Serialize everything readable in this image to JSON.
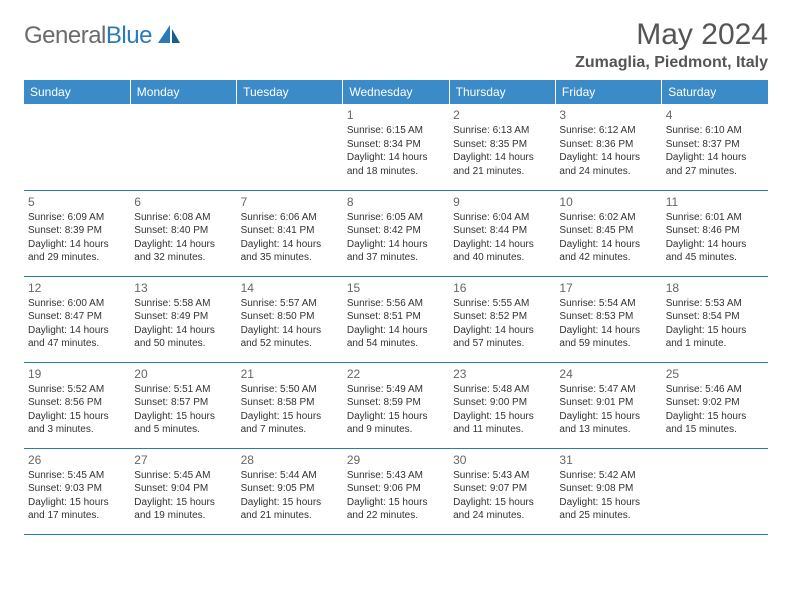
{
  "logo": {
    "part1": "General",
    "part2": "Blue"
  },
  "title": "May 2024",
  "location": "Zumaglia, Piedmont, Italy",
  "colors": {
    "header_bg": "#3b8bc9",
    "header_text": "#ffffff",
    "border": "#2a7ab9",
    "logo_gray": "#6b6b6b",
    "logo_blue": "#2a7ab9",
    "text": "#333333",
    "muted": "#666666"
  },
  "day_headers": [
    "Sunday",
    "Monday",
    "Tuesday",
    "Wednesday",
    "Thursday",
    "Friday",
    "Saturday"
  ],
  "weeks": [
    [
      null,
      null,
      null,
      {
        "n": "1",
        "sunrise": "6:15 AM",
        "sunset": "8:34 PM",
        "daylight": "14 hours and 18 minutes."
      },
      {
        "n": "2",
        "sunrise": "6:13 AM",
        "sunset": "8:35 PM",
        "daylight": "14 hours and 21 minutes."
      },
      {
        "n": "3",
        "sunrise": "6:12 AM",
        "sunset": "8:36 PM",
        "daylight": "14 hours and 24 minutes."
      },
      {
        "n": "4",
        "sunrise": "6:10 AM",
        "sunset": "8:37 PM",
        "daylight": "14 hours and 27 minutes."
      }
    ],
    [
      {
        "n": "5",
        "sunrise": "6:09 AM",
        "sunset": "8:39 PM",
        "daylight": "14 hours and 29 minutes."
      },
      {
        "n": "6",
        "sunrise": "6:08 AM",
        "sunset": "8:40 PM",
        "daylight": "14 hours and 32 minutes."
      },
      {
        "n": "7",
        "sunrise": "6:06 AM",
        "sunset": "8:41 PM",
        "daylight": "14 hours and 35 minutes."
      },
      {
        "n": "8",
        "sunrise": "6:05 AM",
        "sunset": "8:42 PM",
        "daylight": "14 hours and 37 minutes."
      },
      {
        "n": "9",
        "sunrise": "6:04 AM",
        "sunset": "8:44 PM",
        "daylight": "14 hours and 40 minutes."
      },
      {
        "n": "10",
        "sunrise": "6:02 AM",
        "sunset": "8:45 PM",
        "daylight": "14 hours and 42 minutes."
      },
      {
        "n": "11",
        "sunrise": "6:01 AM",
        "sunset": "8:46 PM",
        "daylight": "14 hours and 45 minutes."
      }
    ],
    [
      {
        "n": "12",
        "sunrise": "6:00 AM",
        "sunset": "8:47 PM",
        "daylight": "14 hours and 47 minutes."
      },
      {
        "n": "13",
        "sunrise": "5:58 AM",
        "sunset": "8:49 PM",
        "daylight": "14 hours and 50 minutes."
      },
      {
        "n": "14",
        "sunrise": "5:57 AM",
        "sunset": "8:50 PM",
        "daylight": "14 hours and 52 minutes."
      },
      {
        "n": "15",
        "sunrise": "5:56 AM",
        "sunset": "8:51 PM",
        "daylight": "14 hours and 54 minutes."
      },
      {
        "n": "16",
        "sunrise": "5:55 AM",
        "sunset": "8:52 PM",
        "daylight": "14 hours and 57 minutes."
      },
      {
        "n": "17",
        "sunrise": "5:54 AM",
        "sunset": "8:53 PM",
        "daylight": "14 hours and 59 minutes."
      },
      {
        "n": "18",
        "sunrise": "5:53 AM",
        "sunset": "8:54 PM",
        "daylight": "15 hours and 1 minute."
      }
    ],
    [
      {
        "n": "19",
        "sunrise": "5:52 AM",
        "sunset": "8:56 PM",
        "daylight": "15 hours and 3 minutes."
      },
      {
        "n": "20",
        "sunrise": "5:51 AM",
        "sunset": "8:57 PM",
        "daylight": "15 hours and 5 minutes."
      },
      {
        "n": "21",
        "sunrise": "5:50 AM",
        "sunset": "8:58 PM",
        "daylight": "15 hours and 7 minutes."
      },
      {
        "n": "22",
        "sunrise": "5:49 AM",
        "sunset": "8:59 PM",
        "daylight": "15 hours and 9 minutes."
      },
      {
        "n": "23",
        "sunrise": "5:48 AM",
        "sunset": "9:00 PM",
        "daylight": "15 hours and 11 minutes."
      },
      {
        "n": "24",
        "sunrise": "5:47 AM",
        "sunset": "9:01 PM",
        "daylight": "15 hours and 13 minutes."
      },
      {
        "n": "25",
        "sunrise": "5:46 AM",
        "sunset": "9:02 PM",
        "daylight": "15 hours and 15 minutes."
      }
    ],
    [
      {
        "n": "26",
        "sunrise": "5:45 AM",
        "sunset": "9:03 PM",
        "daylight": "15 hours and 17 minutes."
      },
      {
        "n": "27",
        "sunrise": "5:45 AM",
        "sunset": "9:04 PM",
        "daylight": "15 hours and 19 minutes."
      },
      {
        "n": "28",
        "sunrise": "5:44 AM",
        "sunset": "9:05 PM",
        "daylight": "15 hours and 21 minutes."
      },
      {
        "n": "29",
        "sunrise": "5:43 AM",
        "sunset": "9:06 PM",
        "daylight": "15 hours and 22 minutes."
      },
      {
        "n": "30",
        "sunrise": "5:43 AM",
        "sunset": "9:07 PM",
        "daylight": "15 hours and 24 minutes."
      },
      {
        "n": "31",
        "sunrise": "5:42 AM",
        "sunset": "9:08 PM",
        "daylight": "15 hours and 25 minutes."
      },
      null
    ]
  ],
  "labels": {
    "sunrise": "Sunrise: ",
    "sunset": "Sunset: ",
    "daylight": "Daylight: "
  }
}
